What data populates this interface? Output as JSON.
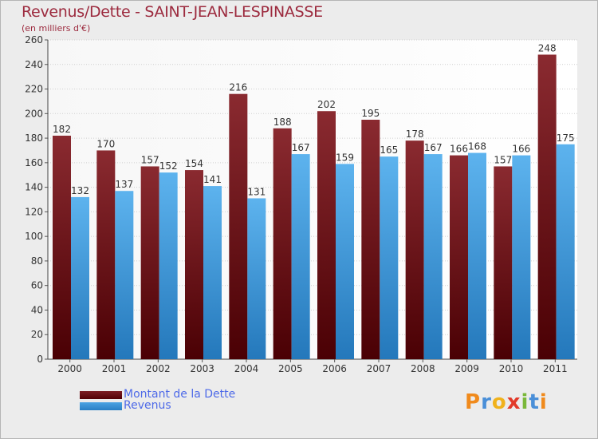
{
  "header": {
    "title": "Revenus/Dette - SAINT-JEAN-LESPINASSE",
    "subtitle": "(en milliers d'€)"
  },
  "colors": {
    "dette": "#7b1c22",
    "dette_dark": "#520005",
    "revenus": "#4ba3e3",
    "revenus_dark": "#2a7fc4",
    "title": "#9c2a3e",
    "legend_text": "#4e6ae8"
  },
  "legend": {
    "dette_label": "Montant de la Dette",
    "revenus_label": "Revenus"
  },
  "logo": {
    "text": "Proxiti"
  },
  "chart_data": {
    "type": "bar",
    "title": "Revenus/Dette - SAINT-JEAN-LESPINASSE",
    "ylabel": "(en milliers d'€)",
    "xlabel": "",
    "ylim": [
      0,
      260
    ],
    "yticks": [
      0,
      20,
      40,
      60,
      80,
      100,
      120,
      140,
      160,
      180,
      200,
      220,
      240,
      260
    ],
    "grid": true,
    "legend_position": "bottom-left",
    "categories": [
      "2000",
      "2001",
      "2002",
      "2003",
      "2004",
      "2005",
      "2006",
      "2007",
      "2008",
      "2009",
      "2010",
      "2011"
    ],
    "series": [
      {
        "name": "Montant de la Dette",
        "values": [
          182,
          170,
          157,
          154,
          216,
          188,
          202,
          195,
          178,
          166,
          157,
          248
        ]
      },
      {
        "name": "Revenus",
        "values": [
          132,
          137,
          152,
          141,
          131,
          167,
          159,
          165,
          167,
          168,
          166,
          175
        ]
      }
    ]
  }
}
